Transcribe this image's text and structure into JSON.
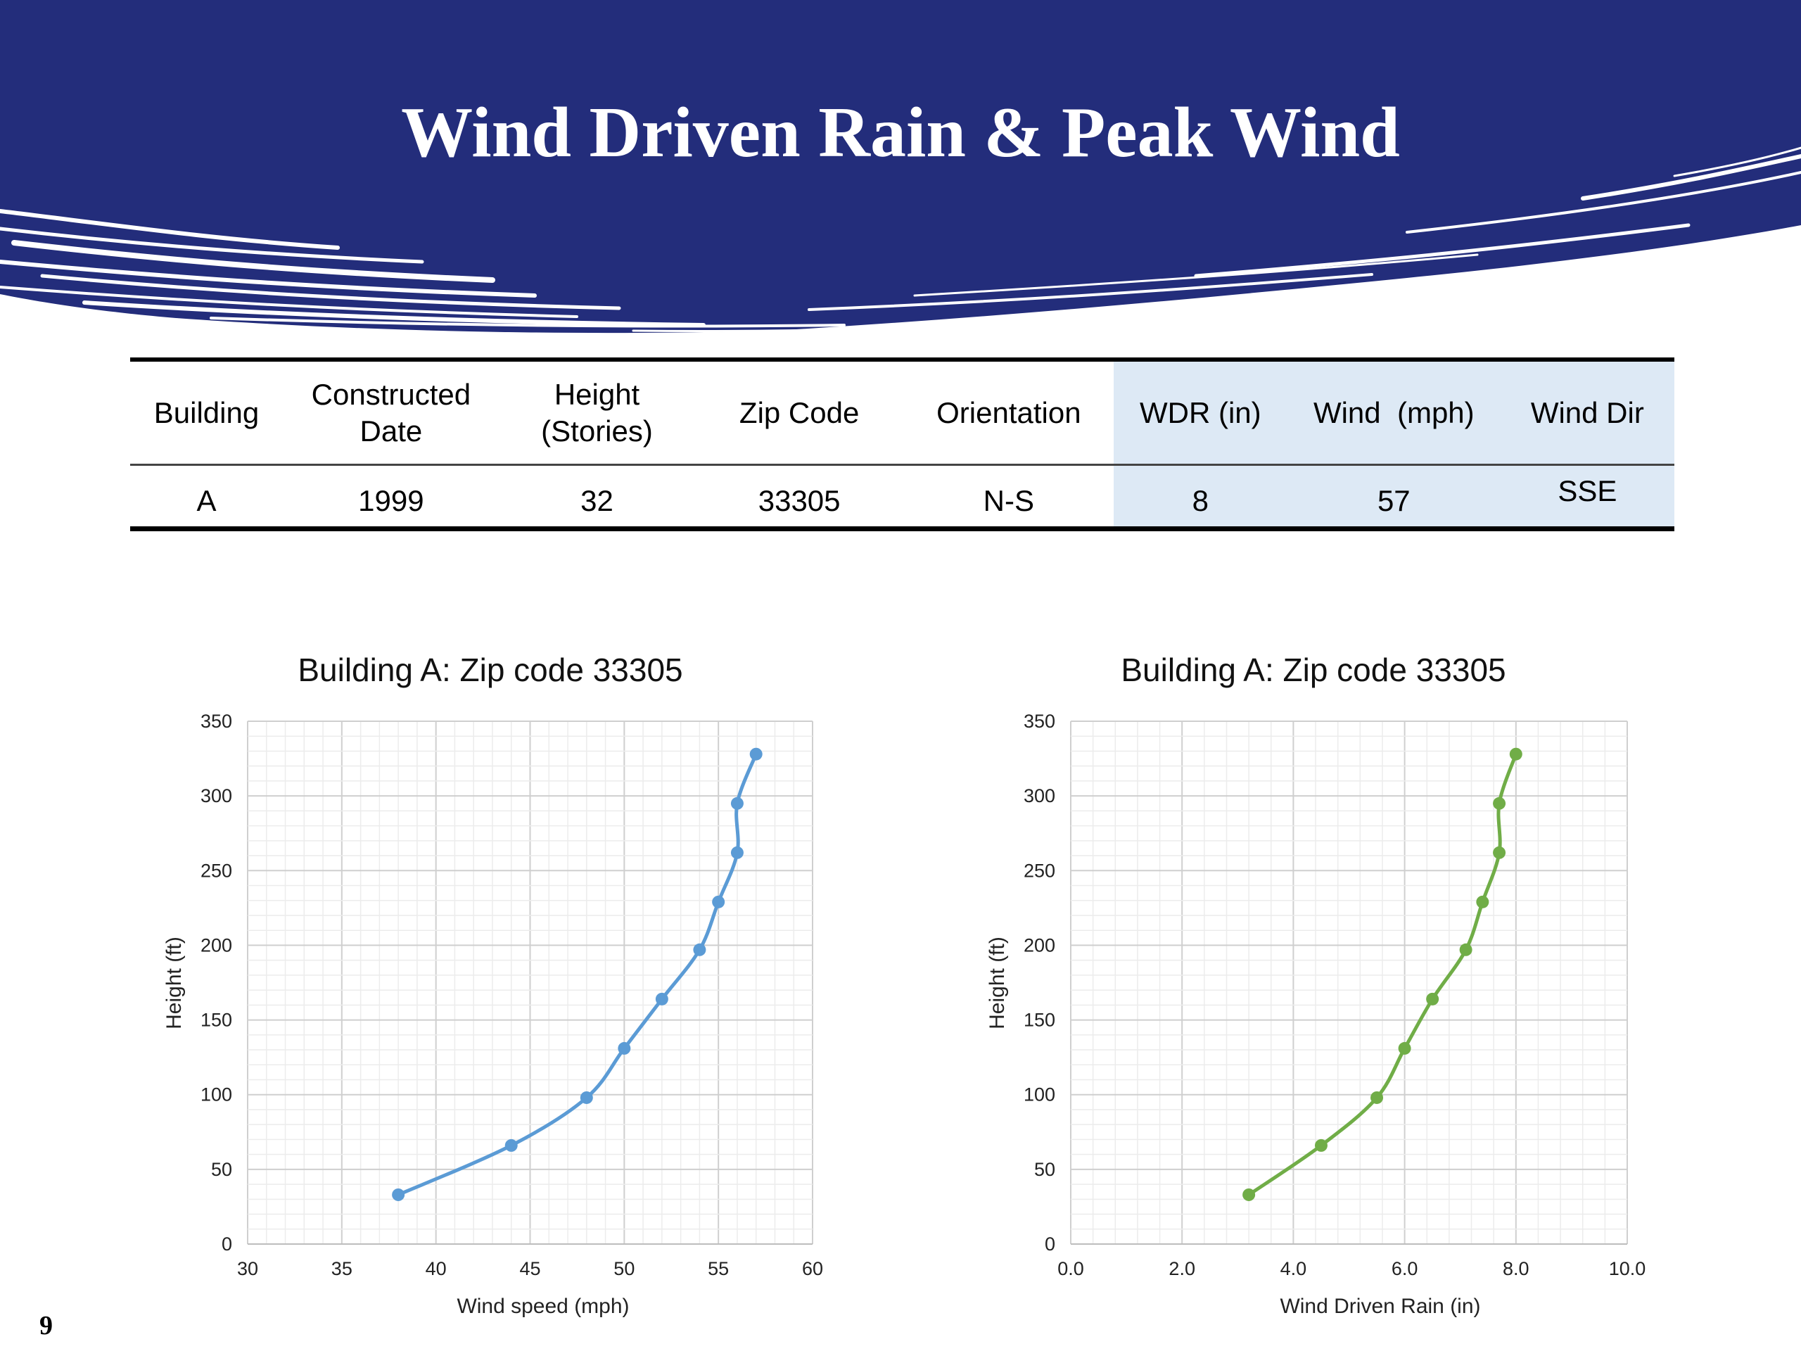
{
  "slide": {
    "title": "Wind Driven Rain & Peak Wind",
    "page_number": "9"
  },
  "colors": {
    "banner": "#232d7b",
    "highlight": "#dde9f5",
    "series_wind": "#5b9bd5",
    "series_wdr": "#70ad47"
  },
  "table": {
    "headers": [
      {
        "line1": "Building",
        "line2": ""
      },
      {
        "line1": "Constructed",
        "line2": "Date"
      },
      {
        "line1": "Height",
        "line2": "(Stories)"
      },
      {
        "line1": "Zip Code",
        "line2": ""
      },
      {
        "line1": "Orientation",
        "line2": ""
      },
      {
        "line1": "WDR (in)",
        "line2": ""
      },
      {
        "line1": "Wind  (mph)",
        "line2": ""
      },
      {
        "line1": "Wind Dir",
        "line2": ""
      }
    ],
    "rows": [
      [
        "A",
        "1999",
        "32",
        "33305",
        "N-S",
        "8",
        "57",
        "SSE"
      ]
    ]
  },
  "chart_data": [
    {
      "type": "line",
      "title": "Building A: Zip code 33305",
      "xlabel": "Wind speed (mph)",
      "ylabel": "Height (ft)",
      "xlim": [
        30,
        60
      ],
      "ylim": [
        0,
        350
      ],
      "xticks": [
        "30",
        "35",
        "40",
        "45",
        "50",
        "55",
        "60"
      ],
      "yticks": [
        "0",
        "50",
        "100",
        "150",
        "200",
        "250",
        "300",
        "350"
      ],
      "grid": true,
      "series": [
        {
          "color": "#5b9bd5",
          "x": [
            38,
            44,
            48,
            50,
            52,
            54,
            55,
            56,
            56,
            57
          ],
          "y": [
            33,
            66,
            98,
            131,
            164,
            197,
            229,
            262,
            295,
            328
          ]
        }
      ]
    },
    {
      "type": "line",
      "title": "Building A: Zip code 33305",
      "xlabel": "Wind Driven Rain (in)",
      "ylabel": "Height (ft)",
      "xlim": [
        0,
        10
      ],
      "ylim": [
        0,
        350
      ],
      "xticks": [
        "0.0",
        "2.0",
        "4.0",
        "6.0",
        "8.0",
        "10.0"
      ],
      "yticks": [
        "0",
        "50",
        "100",
        "150",
        "200",
        "250",
        "300",
        "350"
      ],
      "grid": true,
      "series": [
        {
          "color": "#70ad47",
          "x": [
            3.2,
            4.5,
            5.5,
            6.0,
            6.5,
            7.1,
            7.4,
            7.7,
            7.7,
            8.0
          ],
          "y": [
            33,
            66,
            98,
            131,
            164,
            197,
            229,
            262,
            295,
            328
          ]
        }
      ]
    }
  ]
}
